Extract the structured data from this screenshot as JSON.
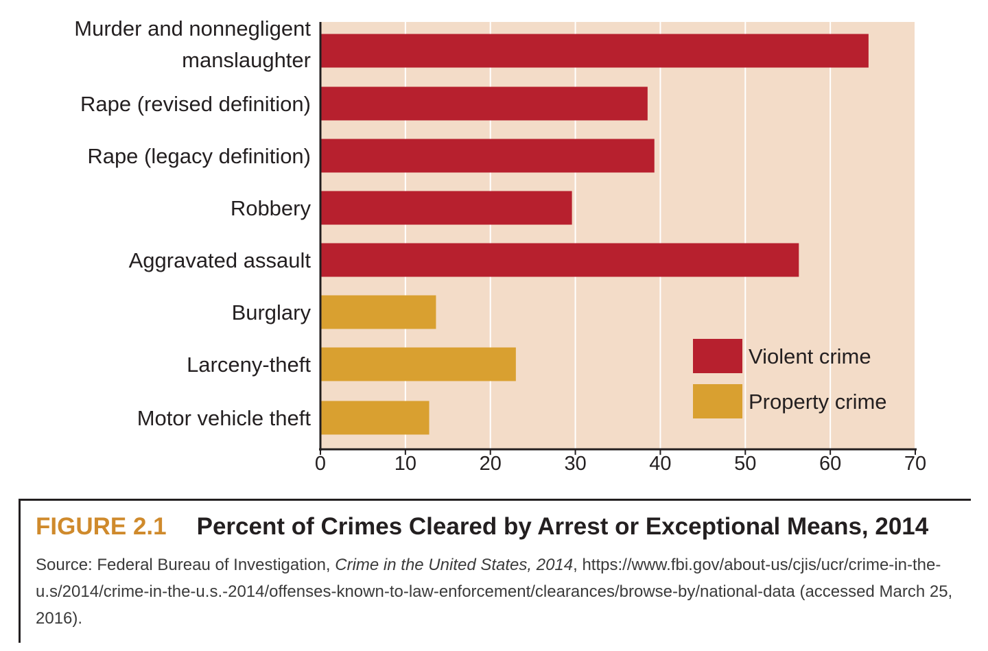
{
  "chart_data": {
    "type": "bar",
    "orientation": "horizontal",
    "categories": [
      [
        "Murder and nonnegligent",
        "manslaughter"
      ],
      [
        "Rape (revised definition)"
      ],
      [
        "Rape (legacy definition)"
      ],
      [
        "Robbery"
      ],
      [
        "Aggravated assault"
      ],
      [
        "Burglary"
      ],
      [
        "Larceny-theft"
      ],
      [
        "Motor vehicle theft"
      ]
    ],
    "values": [
      64.5,
      38.5,
      39.3,
      29.6,
      56.3,
      13.6,
      23.0,
      12.8
    ],
    "groups": [
      "Violent crime",
      "Violent crime",
      "Violent crime",
      "Violent crime",
      "Violent crime",
      "Property crime",
      "Property crime",
      "Property crime"
    ],
    "legend": [
      {
        "name": "Violent crime",
        "color": "#b7202e"
      },
      {
        "name": "Property crime",
        "color": "#d9a030"
      }
    ],
    "legend_position": "bottom-right",
    "xlim": [
      0,
      70
    ],
    "xticks": [
      "0",
      "10",
      "20",
      "30",
      "40",
      "50",
      "60",
      "70"
    ],
    "grid": "vertical",
    "plot_background": "#f3dcc8",
    "gridline_color": "#ffffff"
  },
  "caption": {
    "figure_number": "FIGURE 2.1",
    "title": "Percent of Crimes Cleared by Arrest or Exceptional Means, 2014",
    "source_prefix": "Source: Federal Bureau of Investigation, ",
    "source_italic": "Crime in the United States, 2014",
    "source_rest": ", https://www.fbi.gov/about-us/cjis/ucr/crime-in-the-u.s/2014/crime-in-the-u.s.-2014/offenses-known-to-law-enforcement/clearances/browse-by/national-data (accessed March 25, 2016)."
  }
}
